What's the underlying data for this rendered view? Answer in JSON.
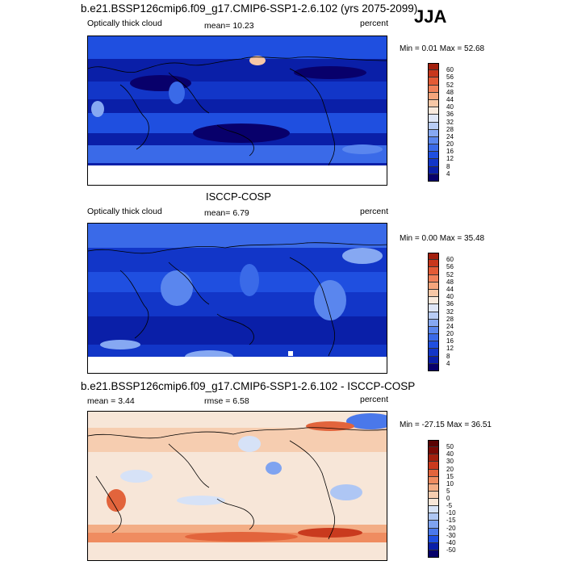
{
  "figure": {
    "season": "JJA",
    "top_title": "b.e21.BSSP126cmip6.f09_g17.CMIP6-SSP1-2.6.102 (yrs 2075-2099)",
    "middle_title": "ISCCP-COSP",
    "diff_title": "b.e21.BSSP126cmip6.f09_g17.CMIP6-SSP1-2.6.102 - ISCCP-COSP"
  },
  "panels": [
    {
      "left_label": "Optically thick cloud",
      "center_label": "mean=  10.23",
      "right_label": "percent",
      "minmax": "Min =   0.01 Max =  52.68",
      "colorbar_ticks": [
        "60",
        "56",
        "52",
        "48",
        "44",
        "40",
        "36",
        "32",
        "28",
        "24",
        "20",
        "16",
        "12",
        "8",
        "4"
      ]
    },
    {
      "left_label": "Optically thick cloud",
      "center_label": "mean=   6.79",
      "right_label": "percent",
      "minmax": "Min =   0.00 Max =  35.48",
      "colorbar_ticks": [
        "60",
        "56",
        "52",
        "48",
        "44",
        "40",
        "36",
        "32",
        "28",
        "24",
        "20",
        "16",
        "12",
        "8",
        "4"
      ]
    },
    {
      "left_label": "mean =   3.44",
      "center_label": "rmse =   6.58",
      "right_label": "percent",
      "minmax": "Min = -27.15 Max =  36.51",
      "colorbar_ticks": [
        "50",
        "40",
        "30",
        "20",
        "15",
        "10",
        "5",
        "0",
        "-5",
        "-10",
        "-15",
        "-20",
        "-30",
        "-40",
        "-50"
      ]
    }
  ],
  "colors": {
    "seq_scale": [
      "#08006b",
      "#0a1fa8",
      "#1236c8",
      "#1f4fe0",
      "#3a6ae8",
      "#5a86ee",
      "#86a8f2",
      "#b8ccf5",
      "#dfe6f7",
      "#f8e9dd",
      "#f7c7a6",
      "#f4a57c",
      "#f0815a",
      "#e35b36",
      "#c8371c",
      "#a3200e",
      "#7a0a05"
    ],
    "div_scale": [
      "#06006a",
      "#0a1fa8",
      "#1f4fe0",
      "#4a78ea",
      "#7fa3f0",
      "#aec6f4",
      "#d6e2f7",
      "#f7e6d8",
      "#f6cdb0",
      "#f3ad85",
      "#ef8c60",
      "#e2643c",
      "#c93a1e",
      "#a3200e",
      "#7a0a05"
    ],
    "land_outline": "#000000"
  }
}
